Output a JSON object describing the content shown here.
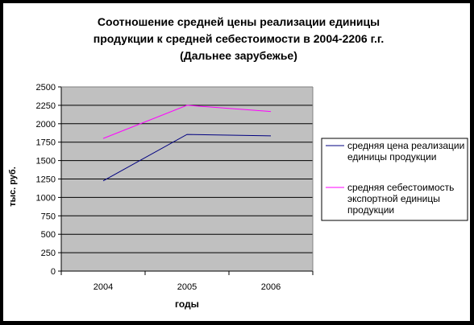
{
  "chart_data": {
    "type": "line",
    "title": [
      "Соотношение средней цены реализации единицы",
      "продукции к средней себестоимости в 2004-2206 г.г.",
      "(Дальнее зарубежье)"
    ],
    "xlabel": "годы",
    "ylabel": "тыс. руб.",
    "categories": [
      "2004",
      "2005",
      "2006"
    ],
    "ylim": [
      0,
      2500
    ],
    "yticks": [
      0,
      250,
      500,
      750,
      1000,
      1250,
      1500,
      1750,
      2000,
      2250,
      2500
    ],
    "ytick_labels": [
      "0",
      "250",
      "500",
      "750",
      "1000",
      "1250",
      "1500",
      "1750",
      "2000",
      "2250",
      "2500"
    ],
    "grid": true,
    "legend_position": "right",
    "series": [
      {
        "name": [
          "средняя цена реализации",
          "единицы продукции"
        ],
        "values": [
          1225,
          1855,
          1835
        ],
        "color": "#000080"
      },
      {
        "name": [
          "средняя себестоимость",
          "экспортной единицы",
          "продукции"
        ],
        "values": [
          1800,
          2250,
          2165
        ],
        "color": "#ff00ff"
      }
    ],
    "plot_background": "#c0c0c0"
  }
}
